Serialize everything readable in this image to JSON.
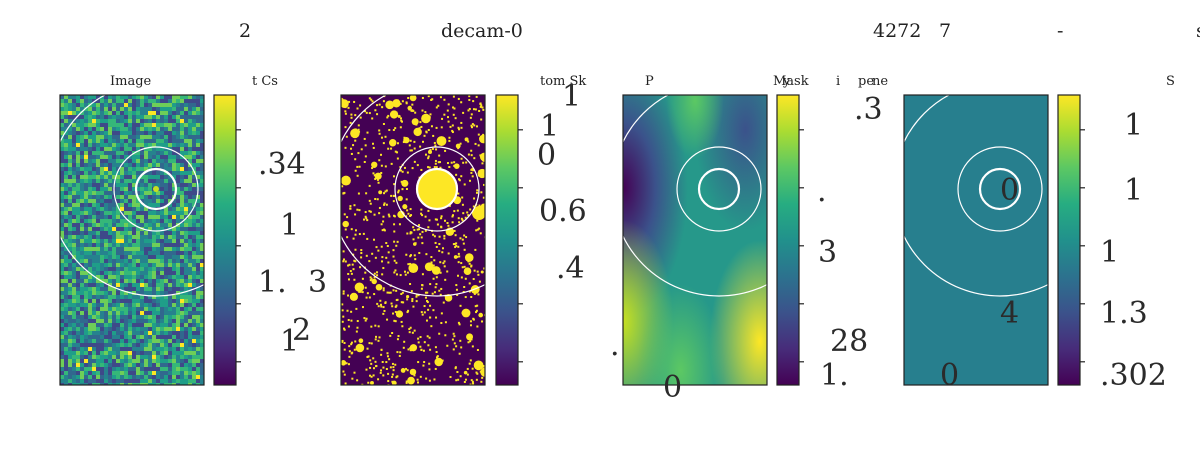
{
  "header": {
    "fragments": [
      "2",
      "decam-0",
      "4272",
      "7",
      "-",
      "s"
    ]
  },
  "panels": [
    {
      "title": "Image",
      "cbar_label": "t  Cs",
      "cmap": "viridis",
      "field": "noise",
      "readout": [
        ".34",
        "1",
        "1.",
        "3",
        "1",
        "2"
      ]
    },
    {
      "title": "",
      "cbar_label": "tom Sk",
      "cmap": "viridis",
      "field": "mask",
      "readout": [
        "1",
        "1",
        "0",
        "0.6",
        ".4"
      ]
    },
    {
      "title": "P",
      "cbar_label": "Mask",
      "cmap": "viridis",
      "field": "smooth",
      "readout": [
        "y",
        "i",
        "pe",
        "ne",
        ".3",
        ".",
        "3",
        "28",
        "1.",
        ".",
        "0"
      ]
    },
    {
      "title": "",
      "cbar_label": "S",
      "cmap": "viridis",
      "field": "flat",
      "readout": [
        "1",
        "0",
        "1",
        "1",
        "4",
        "1.3",
        "0",
        ".302"
      ]
    }
  ],
  "chart_data": [
    {
      "type": "heatmap",
      "title": "Image",
      "colorbar": "viridis",
      "colorbar_ticks": 5,
      "overlay": "aperture circles"
    },
    {
      "type": "heatmap",
      "title": "",
      "colorbar": "viridis",
      "colorbar_ticks": 5,
      "overlay": "aperture circles"
    },
    {
      "type": "heatmap",
      "title": "P",
      "colorbar": "viridis",
      "colorbar_ticks": 5,
      "overlay": "aperture circles"
    },
    {
      "type": "heatmap",
      "title": "",
      "colorbar": "viridis",
      "colorbar_ticks": 5,
      "overlay": "aperture circles"
    }
  ],
  "colors": {
    "frame": "#222222",
    "circle": "#ffffff",
    "flat_fill": "#277f8e",
    "mask_low": "#440154",
    "mask_high": "#fde725"
  }
}
